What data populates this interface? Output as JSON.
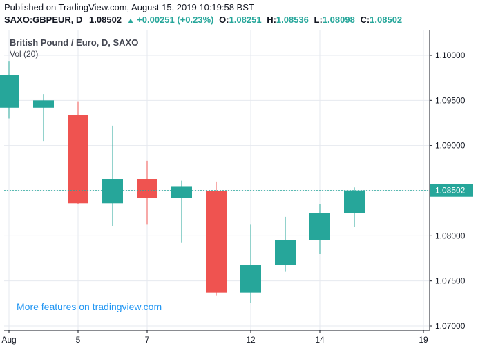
{
  "header": {
    "published": "Published on TradingView.com, August 15, 2019 10:19:58 BST",
    "symbol": "SAXO:GBPEUR, D",
    "last": "1.08502",
    "change_arrow": "▲",
    "change": "+0.00251 (+0.23%)",
    "o_label": "O:",
    "o_value": "1.08251",
    "h_label": "H:",
    "h_value": "1.08536",
    "l_label": "L:",
    "l_value": "1.08098",
    "c_label": "C:",
    "c_value": "1.08502"
  },
  "legend": {
    "title": "British Pound / Euro, D, SAXO",
    "volume": "Vol (20)"
  },
  "watermark": "More features on tradingview.com",
  "last_price_label": "1.08502",
  "colors": {
    "up": "#26a69a",
    "down": "#ef5350",
    "grid": "#e6e9ef",
    "last_line": "#26a69a",
    "watermark": "#2196f3"
  },
  "chart_data": {
    "type": "candlestick",
    "ylim": [
      1.0695,
      1.102
    ],
    "y_ticks": [
      "1.10000",
      "1.09500",
      "1.09000",
      "1.08500",
      "1.08000",
      "1.07500",
      "1.07000"
    ],
    "x_ticks": [
      {
        "label": "Aug",
        "day": 1
      },
      {
        "label": "5",
        "day": 5
      },
      {
        "label": "7",
        "day": 7
      },
      {
        "label": "12",
        "day": 12
      },
      {
        "label": "14",
        "day": 14
      },
      {
        "label": "19",
        "day": 19
      }
    ],
    "candles": [
      {
        "date": "Aug 1",
        "open": 1.0942,
        "high": 1.0993,
        "low": 1.093,
        "close": 1.0978
      },
      {
        "date": "Aug 2",
        "open": 1.0942,
        "high": 1.0957,
        "low": 1.0905,
        "close": 1.095
      },
      {
        "date": "Aug 5",
        "open": 1.0934,
        "high": 1.0949,
        "low": 1.0835,
        "close": 1.0836
      },
      {
        "date": "Aug 6",
        "open": 1.0836,
        "high": 1.0922,
        "low": 1.0811,
        "close": 1.0863
      },
      {
        "date": "Aug 7",
        "open": 1.0863,
        "high": 1.0883,
        "low": 1.0813,
        "close": 1.0842
      },
      {
        "date": "Aug 8",
        "open": 1.0842,
        "high": 1.0861,
        "low": 1.0792,
        "close": 1.0855
      },
      {
        "date": "Aug 9",
        "open": 1.085,
        "high": 1.086,
        "low": 1.0734,
        "close": 1.0737
      },
      {
        "date": "Aug 12",
        "open": 1.0737,
        "high": 1.0813,
        "low": 1.0726,
        "close": 1.0768
      },
      {
        "date": "Aug 13",
        "open": 1.0768,
        "high": 1.0821,
        "low": 1.076,
        "close": 1.0795
      },
      {
        "date": "Aug 14",
        "open": 1.0795,
        "high": 1.0835,
        "low": 1.078,
        "close": 1.0825
      },
      {
        "date": "Aug 15",
        "open": 1.08251,
        "high": 1.08536,
        "low": 1.08098,
        "close": 1.08502
      }
    ],
    "last_price": 1.08502
  }
}
